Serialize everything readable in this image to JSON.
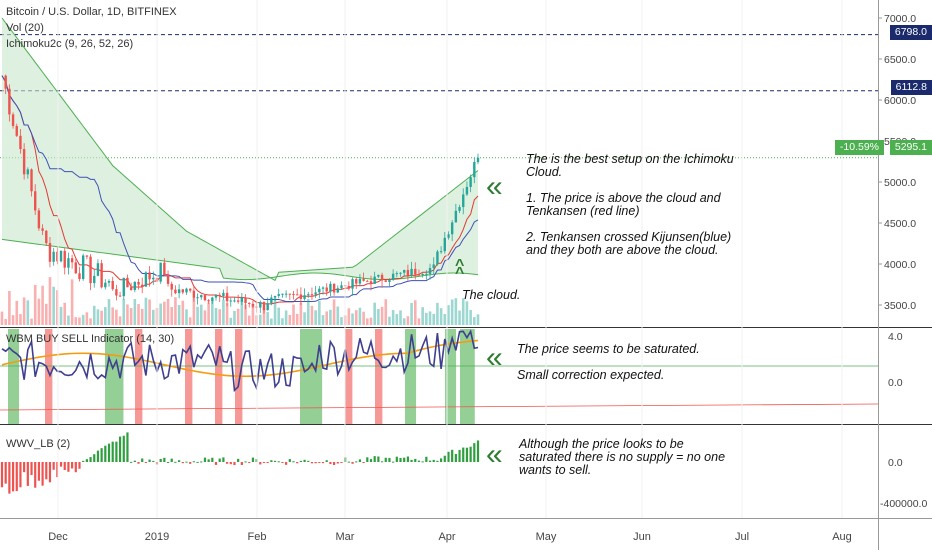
{
  "legend": {
    "symbol": "Bitcoin / U.S. Dollar, 1D, BITFINEX",
    "volume": "Vol (20)",
    "ichimoku": "Ichimoku2c (9, 26, 52, 26)",
    "wbm": "WBM BUY SELL Indicator (14, 30)",
    "wwv": "WWV_LB (2)"
  },
  "price_axis": {
    "ticks": [
      "7000.0",
      "6500.0",
      "6000.0",
      "5500.0",
      "5000.0",
      "4500.0",
      "4000.0",
      "3500.0"
    ],
    "lines": [
      {
        "label": "6798.0",
        "value": 6798.0,
        "color": "#1a2a6c"
      },
      {
        "label": "6112.8",
        "value": 6112.8,
        "color": "#1a2a6c"
      }
    ],
    "current": {
      "change": "-10.59%",
      "price": "5295.1",
      "value": 5295.1,
      "color": "#4caf50"
    }
  },
  "indicator_axis": {
    "ticks": [
      "4.0",
      "0.0"
    ]
  },
  "wwv_axis": {
    "ticks": [
      "0.0",
      "-400000.0"
    ]
  },
  "time_axis": {
    "ticks": [
      "Dec",
      "2019",
      "Feb",
      "Mar",
      "Apr",
      "May",
      "Jun",
      "Jul",
      "Aug"
    ]
  },
  "annotations": {
    "ichimoku_note": "The is the best setup on the Ichimoku\nCloud.\n\n1. The price is above the cloud and\nTenkansen (red line)\n\n2. Tenkansen crossed Kijunsen(blue)\nand they both are above the cloud.",
    "cloud_label": "The cloud.",
    "wbm_note": "The price seems to be saturated.\n\nSmall correction expected.",
    "wwv_note": "Although the price looks to be\nsaturated there is no supply = no one\nwants to sell.",
    "arrow_color": "#2e7d32",
    "arrow_glyph": "«",
    "up_arrow_glyph": "^"
  },
  "chart_data": {
    "type": "line",
    "series": [
      {
        "kind": "candles",
        "values": []
      },
      {
        "kind": "tenkansen",
        "color": "#e53935"
      },
      {
        "kind": "kijunsen",
        "color": "#3f51b5"
      },
      {
        "kind": "cloud",
        "color": "#4caf50"
      }
    ],
    "price_range": [
      3100,
      7250
    ],
    "colors": {
      "up": "#26a69a",
      "down": "#ef5350",
      "cloud_fill": "#c8e6c9",
      "wbm_line": "#3f3f8f",
      "wbm_signal": "#f39c12"
    }
  }
}
